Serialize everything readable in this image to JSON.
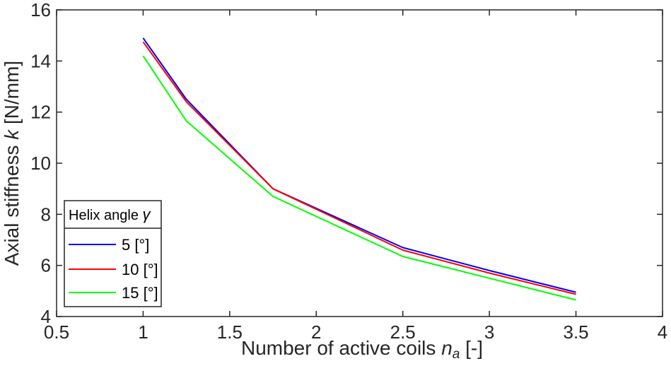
{
  "chart_data": {
    "type": "line",
    "title": "",
    "xlabel": "Number of active coils ",
    "xlabel_symbol": "n",
    "xlabel_sub": "a",
    "xlabel_unit": " [-]",
    "ylabel": "Axial stiffness ",
    "ylabel_symbol": "k",
    "ylabel_unit": " [N/mm]",
    "xlim": [
      0.5,
      4
    ],
    "ylim": [
      4,
      16
    ],
    "xticks": [
      0.5,
      1,
      1.5,
      2,
      2.5,
      3,
      3.5,
      4
    ],
    "xtick_labels": [
      "0.5",
      "1",
      "1.5",
      "2",
      "2.5",
      "3",
      "3.5",
      "4"
    ],
    "yticks": [
      4,
      6,
      8,
      10,
      12,
      14,
      16
    ],
    "ytick_labels": [
      "4",
      "6",
      "8",
      "10",
      "12",
      "14",
      "16"
    ],
    "grid": false,
    "legend": {
      "title": "Helix angle ",
      "title_symbol": "γ",
      "placement": "bottom-left"
    },
    "x": [
      1,
      1.25,
      1.75,
      2.5,
      3,
      3.5
    ],
    "series": [
      {
        "name": "5 [°]",
        "color": "#0000ff",
        "values": [
          14.9,
          12.5,
          9.0,
          6.7,
          5.8,
          4.95
        ]
      },
      {
        "name": "10 [°]",
        "color": "#ff0000",
        "values": [
          14.75,
          12.4,
          9.0,
          6.6,
          5.7,
          4.87
        ]
      },
      {
        "name": "15 [°]",
        "color": "#00ff00",
        "values": [
          14.2,
          11.65,
          8.7,
          6.35,
          5.5,
          4.65
        ]
      }
    ]
  }
}
